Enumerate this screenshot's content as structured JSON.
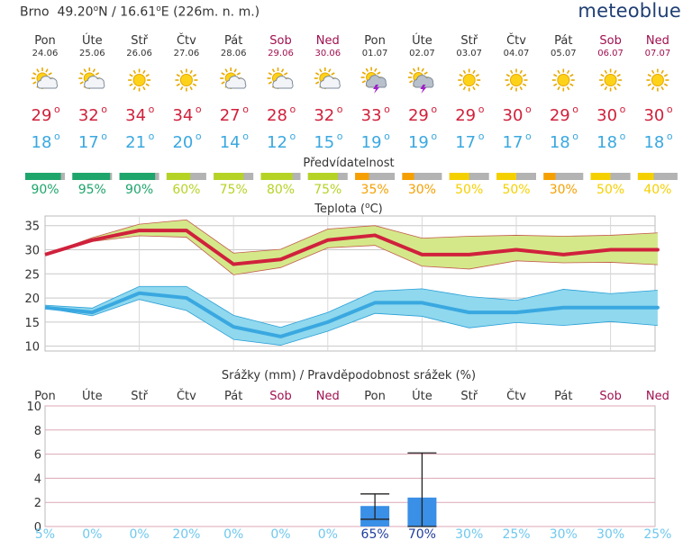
{
  "header": {
    "city": "Brno",
    "lat_value": "49.20",
    "lat_suffix": "N /",
    "lon_value": "16.61",
    "lon_suffix": "E (226m. n. m.)",
    "degree_mark": "o",
    "brand": "meteoblue"
  },
  "colors": {
    "weekday": "#333333",
    "weekend": "#a0104f",
    "max_temp": "#d0213c",
    "min_temp": "#3aa8e0",
    "precip_bar": "#3a8fe6",
    "precip_prob_low": "#6fc8ef",
    "precip_prob_high": "#1f3e9e"
  },
  "days": [
    {
      "name": "Pon",
      "date": "24.06",
      "weekend": false,
      "icon": "sun-cloud-icon",
      "tmax": 29,
      "tmin": 18,
      "pred": 90,
      "pred_label": "90%",
      "pred_color": "#1ea56b",
      "pred_frac": 0.9
    },
    {
      "name": "Úte",
      "date": "25.06",
      "weekend": false,
      "icon": "sun-cloud-icon",
      "tmax": 32,
      "tmin": 17,
      "pred": 95,
      "pred_label": "95%",
      "pred_color": "#1ea56b",
      "pred_frac": 0.95
    },
    {
      "name": "Stř",
      "date": "26.06",
      "weekend": false,
      "icon": "sun-icon",
      "tmax": 34,
      "tmin": 21,
      "pred": 90,
      "pred_label": "90%",
      "pred_color": "#1ea56b",
      "pred_frac": 0.9
    },
    {
      "name": "Čtv",
      "date": "27.06",
      "weekend": false,
      "icon": "sun-icon",
      "tmax": 34,
      "tmin": 20,
      "pred": 60,
      "pred_label": "60%",
      "pred_color": "#b5d325",
      "pred_frac": 0.6
    },
    {
      "name": "Pát",
      "date": "28.06",
      "weekend": false,
      "icon": "sun-cloud-icon",
      "tmax": 27,
      "tmin": 14,
      "pred": 75,
      "pred_label": "75%",
      "pred_color": "#b5d325",
      "pred_frac": 0.75
    },
    {
      "name": "Sob",
      "date": "29.06",
      "weekend": true,
      "icon": "sun-cloud-icon",
      "tmax": 28,
      "tmin": 12,
      "pred": 80,
      "pred_label": "80%",
      "pred_color": "#b5d325",
      "pred_frac": 0.8
    },
    {
      "name": "Ned",
      "date": "30.06",
      "weekend": true,
      "icon": "sun-cloud-icon",
      "tmax": 32,
      "tmin": 15,
      "pred": 75,
      "pred_label": "75%",
      "pred_color": "#b5d325",
      "pred_frac": 0.75
    },
    {
      "name": "Pon",
      "date": "01.07",
      "weekend": false,
      "icon": "thunderstorm-icon",
      "tmax": 33,
      "tmin": 19,
      "pred": 35,
      "pred_label": "35%",
      "pred_color": "#f5a000",
      "pred_frac": 0.35
    },
    {
      "name": "Úte",
      "date": "02.07",
      "weekend": false,
      "icon": "thunderstorm-icon",
      "tmax": 29,
      "tmin": 19,
      "pred": 30,
      "pred_label": "30%",
      "pred_color": "#f5a000",
      "pred_frac": 0.3
    },
    {
      "name": "Stř",
      "date": "03.07",
      "weekend": false,
      "icon": "sun-icon",
      "tmax": 29,
      "tmin": 17,
      "pred": 50,
      "pred_label": "50%",
      "pred_color": "#f5d000",
      "pred_frac": 0.5
    },
    {
      "name": "Čtv",
      "date": "04.07",
      "weekend": false,
      "icon": "sun-icon",
      "tmax": 30,
      "tmin": 17,
      "pred": 50,
      "pred_label": "50%",
      "pred_color": "#f5d000",
      "pred_frac": 0.5
    },
    {
      "name": "Pát",
      "date": "05.07",
      "weekend": false,
      "icon": "sun-icon",
      "tmax": 29,
      "tmin": 18,
      "pred": 30,
      "pred_label": "30%",
      "pred_color": "#f5a000",
      "pred_frac": 0.3
    },
    {
      "name": "Sob",
      "date": "06.07",
      "weekend": true,
      "icon": "sun-icon",
      "tmax": 30,
      "tmin": 18,
      "pred": 50,
      "pred_label": "50%",
      "pred_color": "#f5d000",
      "pred_frac": 0.5
    },
    {
      "name": "Ned",
      "date": "07.07",
      "weekend": true,
      "icon": "sun-icon",
      "tmax": 30,
      "tmin": 18,
      "pred": 40,
      "pred_label": "40%",
      "pred_color": "#f5d000",
      "pred_frac": 0.4
    }
  ],
  "chart_data": [
    {
      "type": "line",
      "title": "Teplota (°C)",
      "title_text": "Teplota (",
      "title_unit": "C)",
      "categories": [
        "Pon",
        "Úte",
        "Stř",
        "Čtv",
        "Pát",
        "Sob",
        "Ned",
        "Pon",
        "Úte",
        "Stř",
        "Čtv",
        "Pát",
        "Sob",
        "Ned"
      ],
      "series": [
        {
          "values": [
            29,
            32,
            34,
            34,
            27,
            28,
            32,
            33,
            29,
            29,
            30,
            29,
            30,
            30
          ],
          "band_upper": [
            29,
            32.5,
            35.3,
            36.2,
            29.3,
            30.1,
            34.3,
            35.0,
            32.4,
            32.8,
            33.0,
            32.8,
            33.0,
            33.5
          ],
          "band_lower": [
            29,
            31.7,
            32.9,
            32.6,
            24.8,
            26.3,
            30.4,
            30.9,
            26.6,
            26.0,
            27.7,
            27.3,
            27.4,
            26.9
          ]
        },
        {
          "values": [
            18,
            17,
            21,
            20,
            14,
            12,
            15,
            19,
            19,
            17,
            17,
            18,
            18,
            18
          ],
          "band_upper": [
            18.5,
            17.9,
            22.4,
            22.4,
            16.4,
            13.9,
            17.0,
            21.4,
            21.9,
            20.3,
            19.5,
            21.8,
            20.9,
            21.6
          ],
          "band_lower": [
            17.9,
            16.3,
            19.7,
            17.4,
            11.4,
            10.2,
            13.1,
            16.8,
            16.2,
            13.8,
            14.9,
            14.3,
            15.1,
            14.3
          ]
        }
      ],
      "ylim": [
        9,
        37
      ],
      "yticks": [
        10,
        15,
        20,
        25,
        30,
        35
      ],
      "grid": true
    },
    {
      "type": "bar",
      "title": "Srážky (mm) / Pravděpodobnost srážek (%)",
      "categories": [
        "Pon",
        "Úte",
        "Stř",
        "Čtv",
        "Pát",
        "Sob",
        "Ned",
        "Pon",
        "Úte",
        "Stř",
        "Čtv",
        "Pát",
        "Sob",
        "Ned"
      ],
      "values": [
        0,
        0,
        0,
        0,
        0,
        0,
        0,
        1.7,
        2.4,
        0,
        0,
        0,
        0,
        0
      ],
      "range_low": [
        null,
        null,
        null,
        null,
        null,
        null,
        null,
        0.6,
        0,
        null,
        null,
        null,
        null,
        null
      ],
      "range_high": [
        null,
        null,
        null,
        null,
        null,
        null,
        null,
        2.7,
        6.1,
        null,
        null,
        null,
        null,
        null
      ],
      "probability_labels": [
        "5%",
        "0%",
        "0%",
        "20%",
        "0%",
        "0%",
        "0%",
        "65%",
        "70%",
        "30%",
        "25%",
        "30%",
        "30%",
        "25%"
      ],
      "probability": [
        5,
        0,
        0,
        20,
        0,
        0,
        0,
        65,
        70,
        30,
        25,
        30,
        30,
        25
      ],
      "ylim": [
        0,
        10
      ],
      "yticks": [
        0,
        2,
        4,
        6,
        8,
        10
      ],
      "grid": true
    }
  ],
  "labels": {
    "predictability": "Předvídatelnost"
  }
}
